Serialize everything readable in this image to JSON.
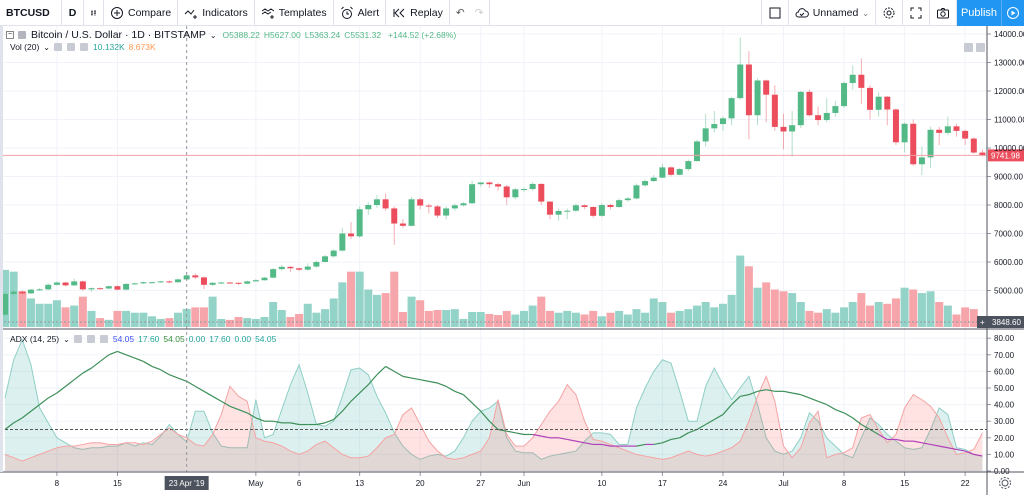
{
  "toolbar": {
    "symbol": "BTCUSD",
    "interval": "D",
    "chart_type_icon": "candles-icon",
    "compare_label": "Compare",
    "indicators_label": "Indicators",
    "templates_label": "Templates",
    "alert_label": "Alert",
    "replay_label": "Replay",
    "layout_name": "Unnamed",
    "publish_label": "Publish"
  },
  "legend": {
    "title": "Bitcoin / U.S. Dollar · 1D · BITSTAMP",
    "open": "O5388.22",
    "high": "H5627.00",
    "low": "L5363.24",
    "close": "C5531.32",
    "change": "+144.52 (+2.68%)",
    "vol_label": "Vol (20)",
    "vol_value": "10.132K",
    "vol_ma": "8.673K",
    "adx_label": "ADX (14, 25)",
    "adx_values": [
      "54.05",
      "17.60",
      "54.05",
      "0.00",
      "17.60",
      "0.00",
      "54.05"
    ]
  },
  "colors": {
    "up": "#53b987",
    "down": "#eb4d5c",
    "vol_up": "#94d3c8",
    "vol_down": "#f6a6aa",
    "plus_di": "#8fcfc6",
    "minus_di": "#f5a3a3",
    "adx": "#3d8f58",
    "adx_weak": "#b040b8",
    "accent": "#2196f3"
  },
  "price_axis": {
    "labels": [
      "14000.00",
      "13000.00",
      "12000.00",
      "11000.00",
      "10000.00",
      "9000.00",
      "8000.00",
      "7000.00",
      "6000.00",
      "5000.00"
    ],
    "last_price": "9741.98",
    "last_volume": "3848.60"
  },
  "adx_axis": {
    "labels": [
      "80.00",
      "70.00",
      "60.00",
      "50.00",
      "40.00",
      "30.00",
      "20.00",
      "10.00",
      "0.00"
    ],
    "threshold": 25
  },
  "time_axis": {
    "labels": [
      "8",
      "15",
      "May",
      "6",
      "13",
      "20",
      "27",
      "Jun",
      "10",
      "17",
      "24",
      "Jul",
      "8",
      "15",
      "22"
    ],
    "crosshair_label": "23 Apr '19"
  },
  "chart_data": {
    "type": "candlestick",
    "symbol": "BTCUSD",
    "first_date": "2019-04-02",
    "last_date": "2019-07-24",
    "ohlc": [
      [
        4150,
        4980,
        4120,
        4880
      ],
      [
        4880,
        5010,
        4820,
        4960
      ],
      [
        4960,
        5000,
        4860,
        4900
      ],
      [
        4900,
        5060,
        4880,
        5030
      ],
      [
        5030,
        5090,
        4990,
        5040
      ],
      [
        5040,
        5250,
        5010,
        5200
      ],
      [
        5200,
        5320,
        5170,
        5280
      ],
      [
        5280,
        5300,
        5150,
        5180
      ],
      [
        5180,
        5420,
        5160,
        5320
      ],
      [
        5320,
        5350,
        4990,
        5040
      ],
      [
        5040,
        5110,
        4950,
        5080
      ],
      [
        5080,
        5110,
        5030,
        5070
      ],
      [
        5070,
        5170,
        5040,
        5150
      ],
      [
        5150,
        5190,
        5010,
        5030
      ],
      [
        5030,
        5260,
        5010,
        5230
      ],
      [
        5230,
        5270,
        5200,
        5250
      ],
      [
        5250,
        5310,
        5230,
        5290
      ],
      [
        5290,
        5320,
        5250,
        5290
      ],
      [
        5290,
        5340,
        5270,
        5320
      ],
      [
        5320,
        5350,
        5250,
        5290
      ],
      [
        5290,
        5420,
        5270,
        5390
      ],
      [
        5388.22,
        5627,
        5363.24,
        5531.32
      ],
      [
        5531,
        5600,
        5400,
        5460
      ],
      [
        5460,
        5490,
        5050,
        5200
      ],
      [
        5200,
        5290,
        5150,
        5270
      ],
      [
        5270,
        5310,
        5230,
        5280
      ],
      [
        5280,
        5300,
        5240,
        5270
      ],
      [
        5270,
        5290,
        5190,
        5240
      ],
      [
        5240,
        5350,
        5220,
        5320
      ],
      [
        5320,
        5400,
        5300,
        5360
      ],
      [
        5360,
        5480,
        5340,
        5450
      ],
      [
        5450,
        5790,
        5430,
        5750
      ],
      [
        5750,
        5900,
        5700,
        5830
      ],
      [
        5830,
        5850,
        5650,
        5780
      ],
      [
        5780,
        5800,
        5680,
        5730
      ],
      [
        5730,
        5950,
        5700,
        5840
      ],
      [
        5840,
        6050,
        5800,
        6000
      ],
      [
        6000,
        6250,
        5980,
        6200
      ],
      [
        6200,
        6450,
        6150,
        6400
      ],
      [
        6400,
        7200,
        6370,
        7000
      ],
      [
        7000,
        7400,
        6800,
        6900
      ],
      [
        6900,
        7950,
        6850,
        7850
      ],
      [
        7850,
        8100,
        7650,
        8000
      ],
      [
        8000,
        8350,
        7900,
        8200
      ],
      [
        8200,
        8400,
        7800,
        7880
      ],
      [
        7880,
        7950,
        6600,
        7350
      ],
      [
        7350,
        7500,
        7200,
        7270
      ],
      [
        7270,
        8280,
        7250,
        8200
      ],
      [
        8200,
        8250,
        7850,
        7980
      ],
      [
        7980,
        8050,
        7700,
        7950
      ],
      [
        7950,
        8000,
        7550,
        7630
      ],
      [
        7630,
        7950,
        7500,
        7880
      ],
      [
        7880,
        8050,
        7800,
        7990
      ],
      [
        7990,
        8100,
        7950,
        8060
      ],
      [
        8060,
        8850,
        8040,
        8730
      ],
      [
        8730,
        8800,
        8650,
        8790
      ],
      [
        8790,
        8820,
        8600,
        8730
      ],
      [
        8730,
        8780,
        8500,
        8650
      ],
      [
        8650,
        8700,
        8000,
        8270
      ],
      [
        8270,
        8600,
        8200,
        8550
      ],
      [
        8550,
        8620,
        8470,
        8560
      ],
      [
        8560,
        8800,
        8500,
        8740
      ],
      [
        8740,
        8760,
        8000,
        8120
      ],
      [
        8120,
        8130,
        7500,
        7660
      ],
      [
        7660,
        7880,
        7450,
        7790
      ],
      [
        7790,
        7880,
        7500,
        7800
      ],
      [
        7800,
        8050,
        7750,
        7990
      ],
      [
        7990,
        8020,
        7850,
        7930
      ],
      [
        7930,
        7950,
        7550,
        7620
      ],
      [
        7620,
        8060,
        7580,
        8000
      ],
      [
        8000,
        8050,
        7850,
        7930
      ],
      [
        7930,
        8230,
        7900,
        8170
      ],
      [
        8170,
        8290,
        8120,
        8230
      ],
      [
        8230,
        8760,
        8200,
        8690
      ],
      [
        8690,
        8900,
        8640,
        8840
      ],
      [
        8840,
        9050,
        8800,
        8960
      ],
      [
        8960,
        9450,
        8950,
        9320
      ],
      [
        9320,
        9350,
        9000,
        9060
      ],
      [
        9060,
        9300,
        9040,
        9260
      ],
      [
        9260,
        9600,
        9200,
        9540
      ],
      [
        9540,
        10300,
        9520,
        10230
      ],
      [
        10230,
        11200,
        10050,
        10690
      ],
      [
        10690,
        11300,
        10550,
        10840
      ],
      [
        10840,
        11100,
        10600,
        11040
      ],
      [
        11040,
        11800,
        10800,
        11750
      ],
      [
        11750,
        13880,
        11700,
        12930
      ],
      [
        12930,
        13400,
        10300,
        11150
      ],
      [
        11150,
        12450,
        10800,
        12370
      ],
      [
        12370,
        12400,
        10900,
        11870
      ],
      [
        11870,
        12200,
        10600,
        10740
      ],
      [
        10740,
        11200,
        9950,
        10580
      ],
      [
        10580,
        11300,
        9700,
        10800
      ],
      [
        10800,
        12000,
        10700,
        11970
      ],
      [
        11970,
        12050,
        11100,
        11150
      ],
      [
        11150,
        11450,
        10800,
        10980
      ],
      [
        10980,
        11750,
        10900,
        11230
      ],
      [
        11230,
        11650,
        11100,
        11470
      ],
      [
        11470,
        12350,
        11400,
        12280
      ],
      [
        12280,
        12900,
        12050,
        12570
      ],
      [
        12570,
        13150,
        11550,
        12110
      ],
      [
        12110,
        12200,
        11000,
        11340
      ],
      [
        11340,
        11950,
        11100,
        11800
      ],
      [
        11800,
        11820,
        10800,
        11350
      ],
      [
        11350,
        11400,
        10100,
        10200
      ],
      [
        10200,
        10900,
        9850,
        10850
      ],
      [
        10850,
        11000,
        9370,
        9430
      ],
      [
        9430,
        10050,
        9050,
        9670
      ],
      [
        9670,
        10750,
        9300,
        10640
      ],
      [
        10640,
        10750,
        10100,
        10530
      ],
      [
        10530,
        11100,
        10450,
        10760
      ],
      [
        10760,
        10850,
        10400,
        10600
      ],
      [
        10600,
        10650,
        10100,
        10330
      ],
      [
        10330,
        10380,
        9800,
        9840
      ],
      [
        9840,
        9950,
        9700,
        9741.98
      ]
    ],
    "volume_k": [
      32,
      31,
      20,
      16,
      13,
      13,
      15,
      11,
      12,
      17,
      9,
      5,
      4,
      9,
      9,
      8,
      8,
      6,
      4.5,
      5,
      8,
      10.132,
      11,
      11,
      17,
      4.5,
      4,
      5.6,
      5,
      4.5,
      5.6,
      14,
      9.5,
      5.6,
      7.3,
      13,
      8,
      10,
      16,
      25,
      31,
      31,
      21,
      18,
      19,
      31,
      8.4,
      17,
      15,
      9,
      9.5,
      9.5,
      10,
      4.5,
      8.4,
      8.4,
      7.3,
      6.7,
      9,
      7,
      9,
      12,
      17,
      9,
      8,
      9,
      8,
      7,
      9,
      6,
      8,
      9,
      7,
      10,
      8,
      16,
      14,
      8,
      9,
      10,
      12,
      14,
      11,
      13,
      18,
      40,
      34,
      22,
      25,
      21,
      20,
      19,
      14,
      9,
      8,
      10,
      8,
      11,
      14,
      19,
      12,
      14,
      13,
      16,
      22,
      21,
      19,
      20,
      14,
      12,
      7,
      11,
      10,
      3.8486
    ],
    "adx": [
      25,
      29,
      32,
      36,
      40,
      44,
      47,
      51,
      55,
      59,
      62,
      66,
      70,
      72,
      70,
      68,
      66,
      63,
      61,
      58,
      56,
      54.05,
      51,
      48,
      45,
      42,
      39,
      37,
      35,
      32,
      30,
      30,
      29,
      29,
      28,
      28,
      28,
      29,
      31,
      36,
      42,
      47,
      52,
      58,
      63,
      60,
      57,
      56,
      55,
      54,
      53,
      51,
      48,
      46,
      41,
      36,
      30,
      25,
      24,
      23,
      22,
      22,
      21,
      20,
      20,
      19,
      18,
      17,
      16,
      16,
      15,
      15,
      15,
      15,
      16,
      16,
      17,
      19,
      20,
      23,
      25,
      28,
      31,
      34,
      40,
      45,
      46,
      48,
      49,
      48,
      48,
      47,
      46,
      44,
      42,
      40,
      37,
      35,
      32,
      28,
      25,
      22,
      19,
      19,
      18,
      18,
      17,
      16,
      15,
      14,
      13,
      12,
      10,
      9
    ],
    "plus_di": [
      44,
      67,
      79,
      64,
      38,
      29,
      20,
      17,
      14,
      13,
      14,
      14,
      15,
      15,
      17,
      15,
      17,
      16,
      21,
      28,
      22,
      17.6,
      36,
      36,
      23,
      15,
      14,
      14,
      14,
      43,
      20,
      22,
      37,
      52,
      64,
      47,
      28,
      27,
      30,
      45,
      61,
      62,
      58,
      45,
      35,
      23,
      15,
      10,
      7,
      9,
      10,
      9,
      12,
      20,
      30,
      36,
      38,
      42,
      20,
      12,
      11,
      11,
      7,
      9,
      10,
      11,
      12,
      18,
      23,
      23,
      22,
      16,
      16,
      38,
      50,
      60,
      67,
      65,
      48,
      30,
      30,
      51,
      62,
      52,
      43,
      50,
      57,
      40,
      20,
      12,
      10,
      12,
      20,
      35,
      30,
      20,
      15,
      10,
      8,
      20,
      32,
      28,
      22,
      18,
      14,
      13,
      14,
      25,
      38,
      34,
      14,
      13,
      10,
      9
    ],
    "minus_di": [
      10,
      8,
      6,
      8,
      10,
      12,
      14,
      15,
      15,
      16,
      17,
      17,
      16,
      16,
      17,
      17,
      16,
      18,
      22,
      26,
      22,
      20,
      16,
      15,
      22,
      34,
      51,
      45,
      42,
      20,
      18,
      17,
      15,
      12,
      10,
      12,
      16,
      18,
      14,
      10,
      8,
      8,
      9,
      14,
      20,
      22,
      34,
      38,
      28,
      18,
      12,
      8,
      7,
      8,
      10,
      12,
      20,
      43,
      22,
      15,
      15,
      20,
      28,
      36,
      42,
      52,
      46,
      30,
      19,
      18,
      16,
      14,
      12,
      10,
      9,
      8,
      7,
      8,
      10,
      12,
      10,
      9,
      10,
      12,
      14,
      18,
      30,
      45,
      57,
      42,
      15,
      8,
      14,
      29,
      36,
      8,
      10,
      11,
      14,
      32,
      34,
      25,
      17,
      22,
      38,
      46,
      43,
      39,
      32,
      20,
      10,
      11,
      13,
      23
    ]
  }
}
